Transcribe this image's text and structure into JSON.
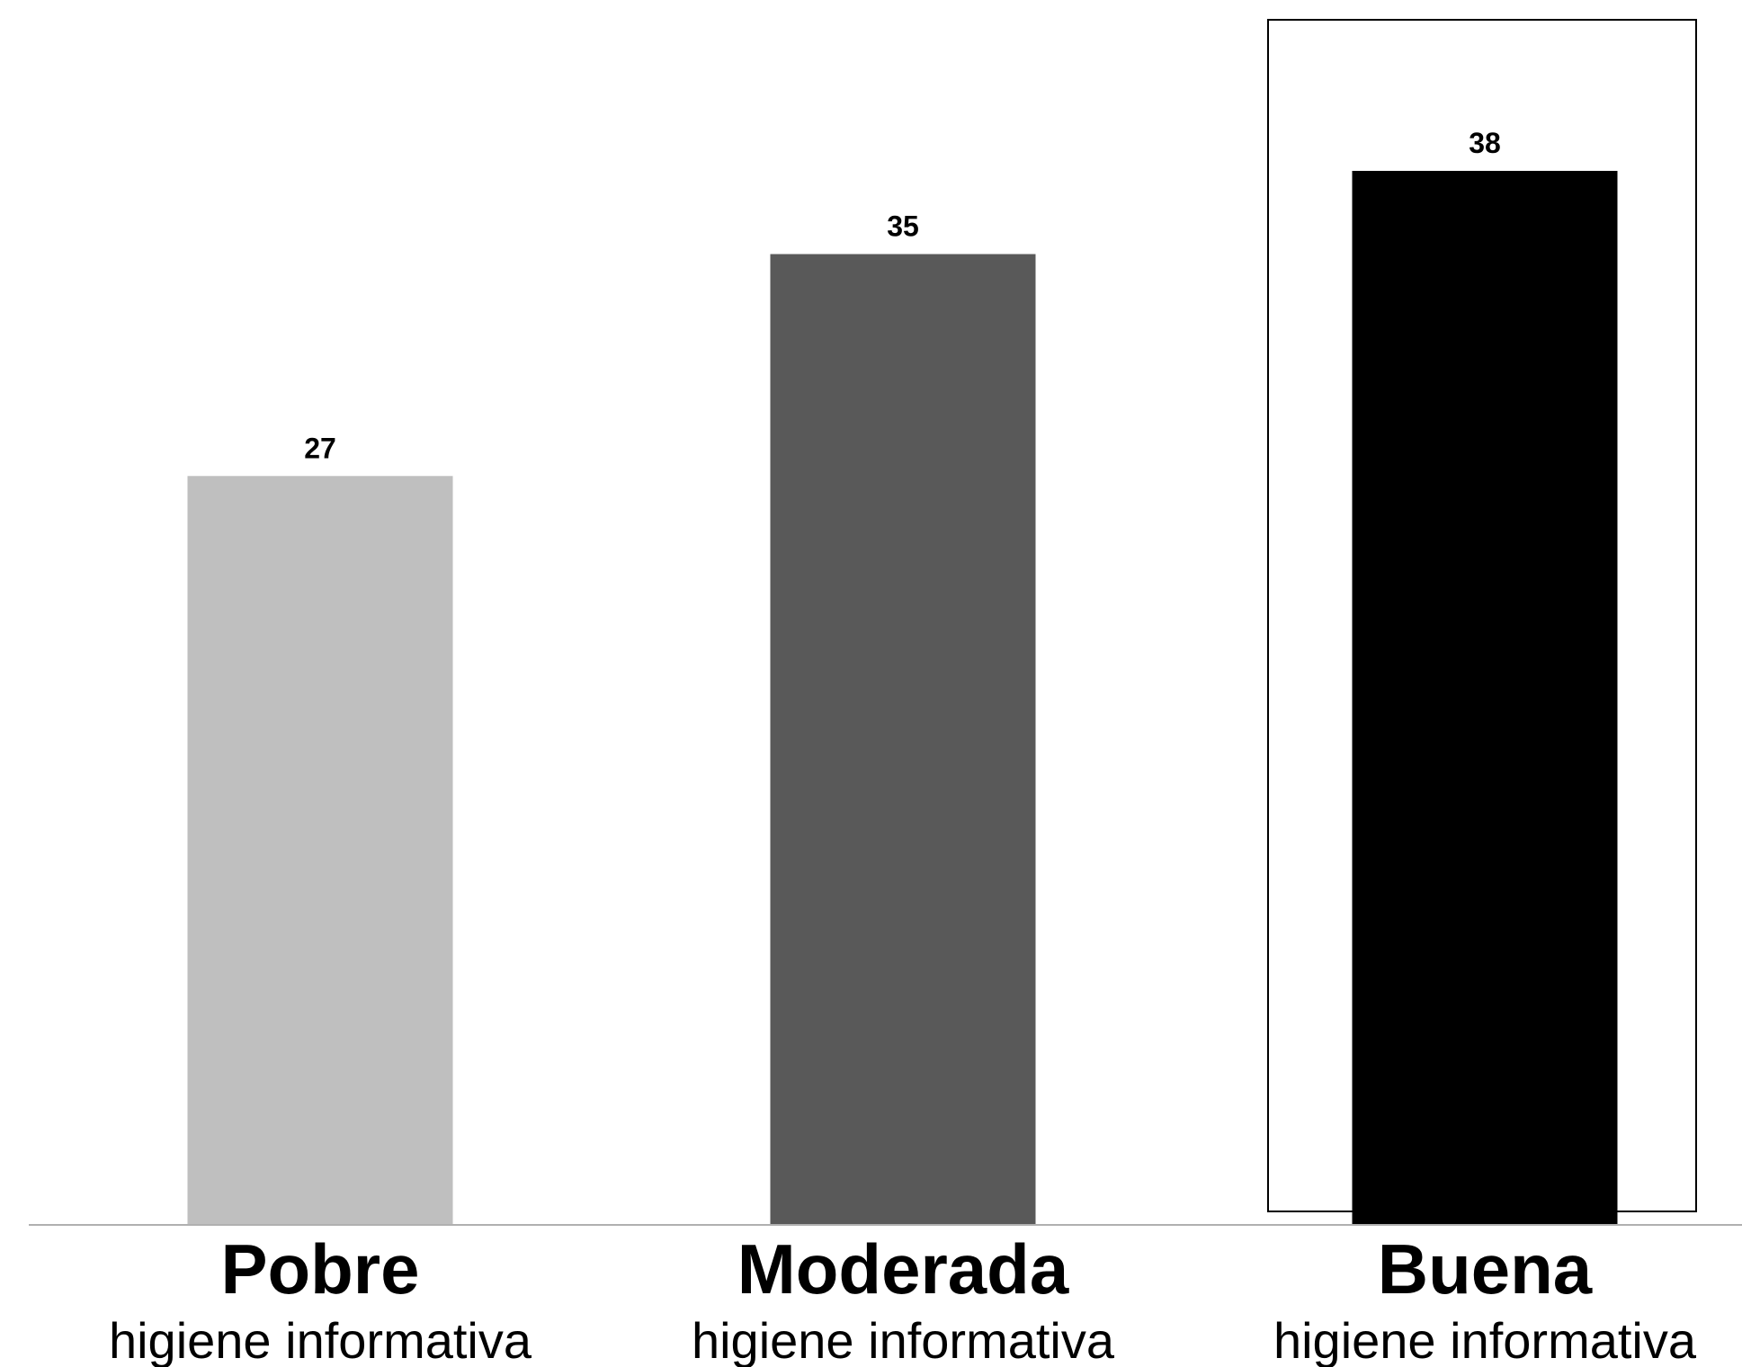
{
  "chart_data": {
    "type": "bar",
    "categories": [
      "Pobre",
      "Moderada",
      "Buena"
    ],
    "category_sublabels": [
      "higiene informativa",
      "higiene informativa",
      "higiene informativa"
    ],
    "values": [
      27,
      35,
      38
    ],
    "data_labels": [
      "27",
      "35",
      "38"
    ],
    "bar_colors": [
      "#bfbfbf",
      "#595959",
      "#000000"
    ],
    "highlighted_category": "Buena",
    "ylim": [
      0,
      45
    ],
    "grid": false,
    "legend": "none",
    "title": "",
    "xlabel": "",
    "ylabel": ""
  }
}
